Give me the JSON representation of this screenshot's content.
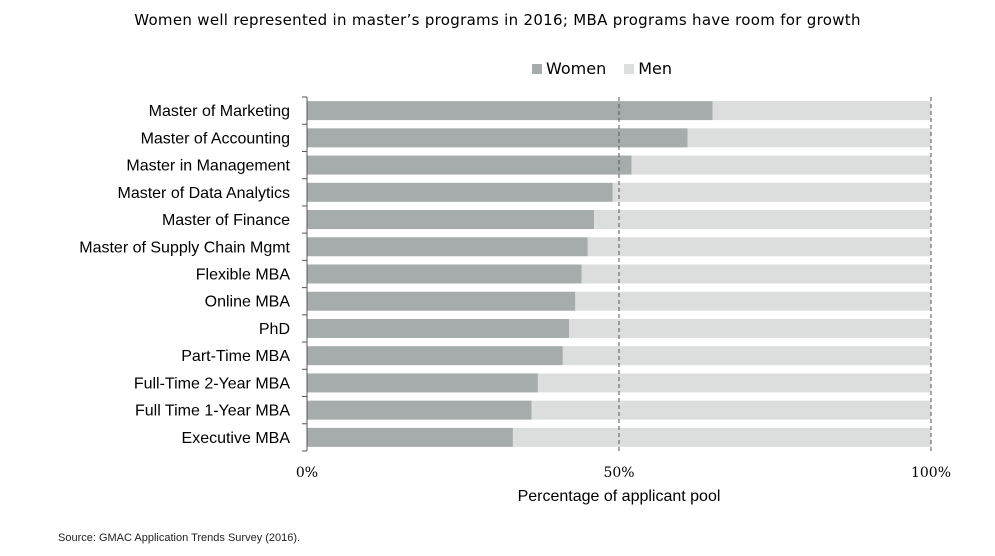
{
  "chart_data": {
    "type": "bar",
    "orientation": "horizontal",
    "stacked": true,
    "title": "Women well represented in master’s programs in 2016; MBA programs have room for growth",
    "xlabel": "Percentage of applicant pool",
    "ylabel": "",
    "xlim": [
      0,
      100
    ],
    "x_ticks": [
      "0%",
      "50%",
      "100%"
    ],
    "x_tick_values": [
      0,
      50,
      100
    ],
    "grid": true,
    "legend_position": "top-right",
    "categories": [
      "Master of Marketing",
      "Master of Accounting",
      "Master in Management",
      "Master of Data Analytics",
      "Master of Finance",
      "Master of Supply Chain Mgmt",
      "Flexible MBA",
      "Online MBA",
      "PhD",
      "Part-Time MBA",
      "Full-Time  2-Year MBA",
      "Full Time 1-Year MBA",
      "Executive MBA"
    ],
    "series": [
      {
        "name": "Women",
        "color": "#a5acab",
        "values": [
          65,
          61,
          52,
          49,
          46,
          45,
          44,
          43,
          42,
          41,
          37,
          36,
          33
        ]
      },
      {
        "name": "Men",
        "color": "#dcdedd",
        "values": [
          35,
          39,
          48,
          51,
          54,
          55,
          56,
          57,
          58,
          59,
          63,
          64,
          67
        ]
      }
    ]
  },
  "source": "Source: GMAC Application Trends Survey (2016)."
}
